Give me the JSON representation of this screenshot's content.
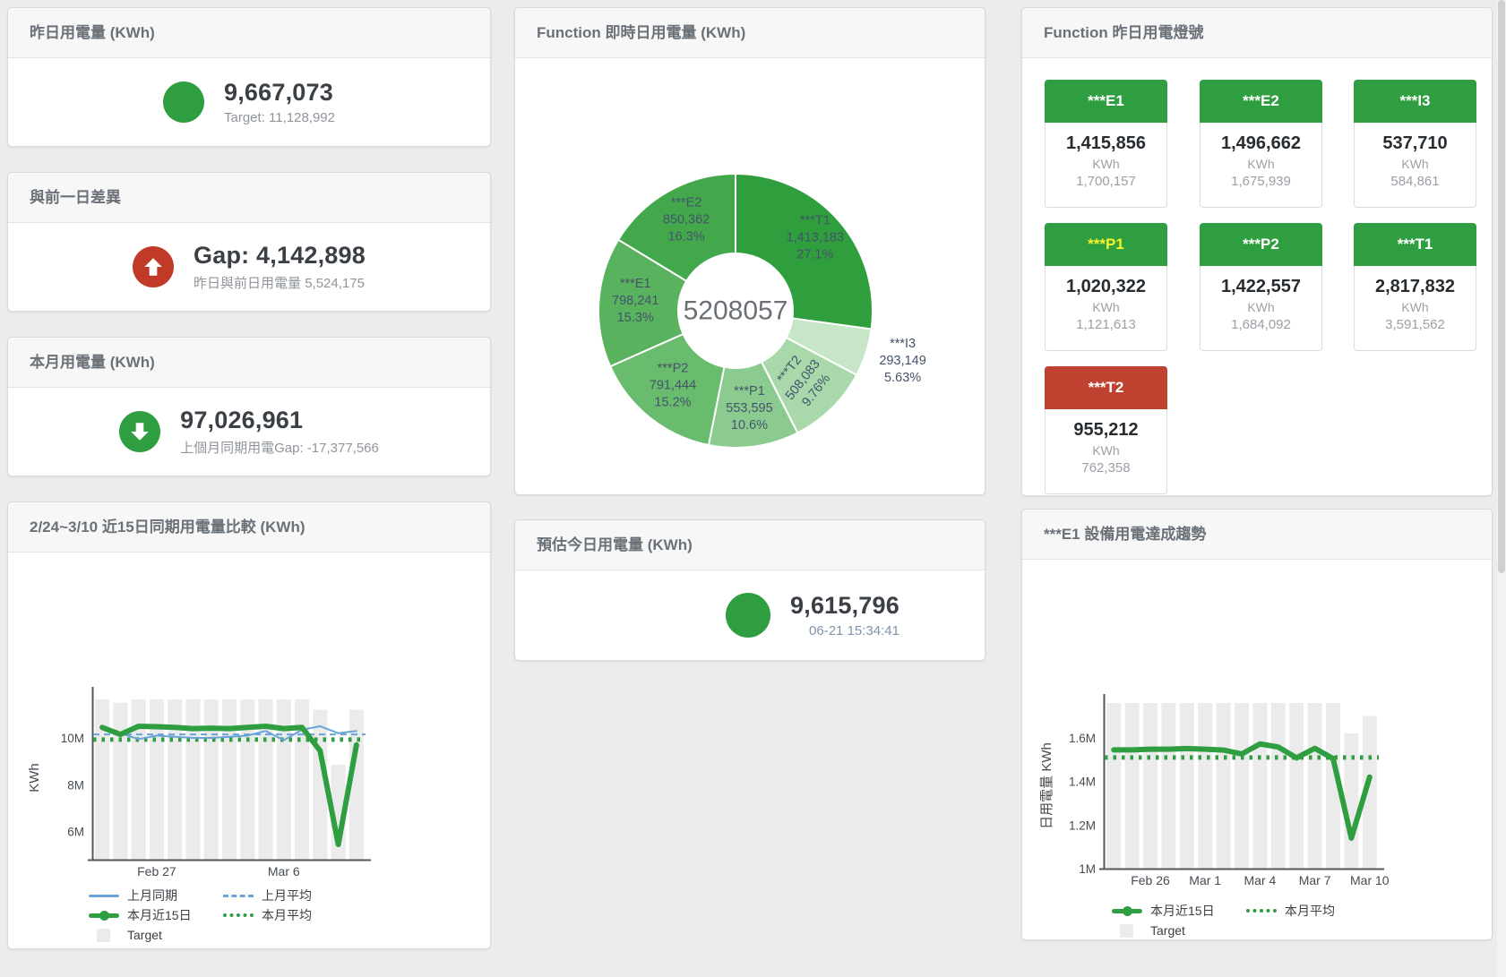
{
  "cards": {
    "yesterday": {
      "title": "昨日用電量 (KWh)",
      "value": "9,667,073",
      "sub": "Target: 11,128,992",
      "icon_color": "#2f9e41"
    },
    "gap": {
      "title": "與前一日差異",
      "value": "Gap: 4,142,898",
      "sub": "昨日與前日用電量 5,524,175",
      "icon_color": "#c13a27"
    },
    "month": {
      "title": "本月用電量 (KWh)",
      "value": "97,026,961",
      "sub": "上個月同期用電Gap: -17,377,566",
      "icon_color": "#2f9e41"
    },
    "compare": {
      "title": "2/24~3/10 近15日同期用電量比較 (KWh)"
    },
    "donut": {
      "title": "Function 即時日用電量 (KWh)",
      "center_total": "5208057"
    },
    "forecast": {
      "title": "預估今日用電量 (KWh)",
      "value": "9,615,796",
      "sub": "06-21 15:34:41",
      "icon_color": "#2f9e41"
    },
    "lights": {
      "title": "Function 昨日用電燈號"
    },
    "trend": {
      "title": "***E1 設備用電達成趨勢"
    }
  },
  "lights": {
    "tiles": [
      {
        "label": "***E1",
        "value": "1,415,856",
        "unit": "KWh",
        "target": "1,700,157",
        "status_color": "#2f9e41",
        "label_color": "#ffffff"
      },
      {
        "label": "***E2",
        "value": "1,496,662",
        "unit": "KWh",
        "target": "1,675,939",
        "status_color": "#2f9e41",
        "label_color": "#ffffff"
      },
      {
        "label": "***I3",
        "value": "537,710",
        "unit": "KWh",
        "target": "584,861",
        "status_color": "#2f9e41",
        "label_color": "#ffffff"
      },
      {
        "label": "***P1",
        "value": "1,020,322",
        "unit": "KWh",
        "target": "1,121,613",
        "status_color": "#2f9e41",
        "label_color": "#f7f32a"
      },
      {
        "label": "***P2",
        "value": "1,422,557",
        "unit": "KWh",
        "target": "1,684,092",
        "status_color": "#2f9e41",
        "label_color": "#ffffff"
      },
      {
        "label": "***T1",
        "value": "2,817,832",
        "unit": "KWh",
        "target": "3,591,562",
        "status_color": "#2f9e41",
        "label_color": "#ffffff"
      },
      {
        "label": "***T2",
        "value": "955,212",
        "unit": "KWh",
        "target": "762,358",
        "status_color": "#bf4130",
        "label_color": "#ffffff"
      }
    ]
  },
  "chart_data": [
    {
      "id": "donut",
      "type": "pie",
      "title": "Function 即時日用電量 (KWh)",
      "center_total": "5208057",
      "legend_position": "none",
      "label_color": "#44546a",
      "slices": [
        {
          "name": "***T1",
          "value": 1413183,
          "value_label": "1,413,183",
          "pct_label": "27.1%",
          "color": "#2f9e3d",
          "label_display": "inside",
          "label_r": 118,
          "label_rotate": 0
        },
        {
          "name": "***I3",
          "value": 293149,
          "value_label": "293,149",
          "pct_label": "5.63%",
          "color": "#c6e6c7",
          "label_display": "outside",
          "label_r": 196,
          "label_rotate": 0
        },
        {
          "name": "***T2",
          "value": 508083,
          "value_label": "508,083",
          "pct_label": "9.76%",
          "color": "#a9d8ab",
          "label_display": "inside",
          "label_r": 112,
          "label_rotate": -52
        },
        {
          "name": "***P1",
          "value": 553595,
          "value_label": "553,595",
          "pct_label": "10.6%",
          "color": "#8ccb8f",
          "label_display": "inside",
          "label_r": 114,
          "label_rotate": 0
        },
        {
          "name": "***P2",
          "value": 791444,
          "value_label": "791,444",
          "pct_label": "15.2%",
          "color": "#69bb6d",
          "label_display": "inside",
          "label_r": 112,
          "label_rotate": 0
        },
        {
          "name": "***E1",
          "value": 798241,
          "value_label": "798,241",
          "pct_label": "15.3%",
          "color": "#59b25d",
          "label_display": "inside",
          "label_r": 112,
          "label_rotate": 0
        },
        {
          "name": "***E2",
          "value": 850362,
          "value_label": "850,362",
          "pct_label": "16.3%",
          "color": "#43a84c",
          "label_display": "inside",
          "label_r": 112,
          "label_rotate": 0
        }
      ]
    },
    {
      "id": "compare",
      "type": "line",
      "title": "2/24~3/10 近15日同期用電量比較 (KWh)",
      "ylabel": "KWh",
      "ylim": [
        4800000,
        11800000
      ],
      "grid": false,
      "legend_position": "bottom",
      "y_ticks": [
        {
          "value": 6000000,
          "label": "6M"
        },
        {
          "value": 8000000,
          "label": "8M"
        },
        {
          "value": 10000000,
          "label": "10M"
        }
      ],
      "x_ticks": [
        {
          "index": 3,
          "label": "Feb 27"
        },
        {
          "index": 10,
          "label": "Mar 6"
        }
      ],
      "series": [
        {
          "name": "上月同期",
          "type": "line",
          "color": "#6aa3d8",
          "width": 2,
          "values": [
            10500000,
            10200000,
            9950000,
            10100000,
            10050000,
            10000000,
            10000000,
            10050000,
            10100000,
            10300000,
            9900000,
            10350000,
            10500000,
            10200000,
            10300000
          ]
        },
        {
          "name": "上月平均",
          "type": "avg-dashed",
          "color": "#6aa3d8",
          "value": 10150000
        },
        {
          "name": "本月近15日",
          "type": "line",
          "color": "#2f9e41",
          "width": 6,
          "values": [
            10450000,
            10150000,
            10500000,
            10480000,
            10450000,
            10400000,
            10420000,
            10400000,
            10450000,
            10500000,
            10400000,
            10450000,
            9450000,
            5450000,
            9700000
          ]
        },
        {
          "name": "本月平均",
          "type": "avg-dotted",
          "color": "#2f9e41",
          "value": 9930000
        },
        {
          "name": "Target",
          "type": "bar",
          "color": "#ebebeb",
          "values": [
            11650000,
            11500000,
            11650000,
            11650000,
            11650000,
            11650000,
            11650000,
            11650000,
            11650000,
            11650000,
            11650000,
            11650000,
            11200000,
            8850000,
            11200000
          ]
        }
      ]
    },
    {
      "id": "trend",
      "type": "line",
      "title": "***E1 設備用電達成趨勢",
      "ylabel": "日用電量 KWh",
      "ylim": [
        1000000,
        1760000
      ],
      "grid": false,
      "legend_position": "bottom",
      "y_ticks": [
        {
          "value": 1000000,
          "label": "1M"
        },
        {
          "value": 1200000,
          "label": "1.2M"
        },
        {
          "value": 1400000,
          "label": "1.4M"
        },
        {
          "value": 1600000,
          "label": "1.6M"
        }
      ],
      "x_ticks": [
        {
          "index": 2,
          "label": "Feb 26"
        },
        {
          "index": 5,
          "label": "Mar 1"
        },
        {
          "index": 8,
          "label": "Mar 4"
        },
        {
          "index": 11,
          "label": "Mar 7"
        },
        {
          "index": 14,
          "label": "Mar 10"
        }
      ],
      "series": [
        {
          "name": "本月近15日",
          "type": "line",
          "color": "#2f9e41",
          "width": 6,
          "values": [
            1545000,
            1545000,
            1548000,
            1548000,
            1551000,
            1548000,
            1544000,
            1526000,
            1572000,
            1558000,
            1508000,
            1552000,
            1505000,
            1140000,
            1420000
          ]
        },
        {
          "name": "本月平均",
          "type": "avg-dotted",
          "color": "#2f9e41",
          "value": 1510000
        },
        {
          "name": "Target",
          "type": "bar",
          "color": "#ebebeb",
          "values": [
            1760000,
            1760000,
            1760000,
            1760000,
            1760000,
            1760000,
            1760000,
            1760000,
            1760000,
            1760000,
            1760000,
            1760000,
            1760000,
            1620000,
            1700000
          ]
        }
      ]
    }
  ]
}
